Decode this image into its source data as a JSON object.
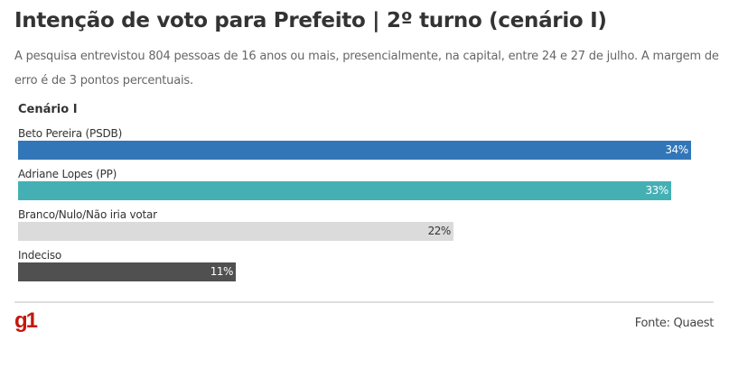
{
  "title": "Intenção de voto para Prefeito | 2º turno (cenário I)",
  "subtitle": "A pesquisa entrevistou 804 pessoas de 16 anos ou mais, presencialmente, na capital, entre 24 e 27 de julho. A margem de erro é de 3 pontos percentuais.",
  "source": "Fonte: Quaest",
  "logo": "g1",
  "chart_data": {
    "type": "bar",
    "orientation": "horizontal",
    "title": "Cenário I",
    "categories": [
      "Beto Pereira (PSDB)",
      "Adriane Lopes (PP)",
      "Branco/Nulo/Não iria votar",
      "Indeciso"
    ],
    "values": [
      34,
      33,
      22,
      11
    ],
    "value_labels": [
      "34%",
      "33%",
      "22%",
      "11%"
    ],
    "colors": [
      "#3276b8",
      "#44b0b4",
      "#dbdbdb",
      "#505050"
    ],
    "label_colors": [
      "#ffffff",
      "#ffffff",
      "#333333",
      "#ffffff"
    ],
    "grid": false,
    "legend": "none"
  }
}
